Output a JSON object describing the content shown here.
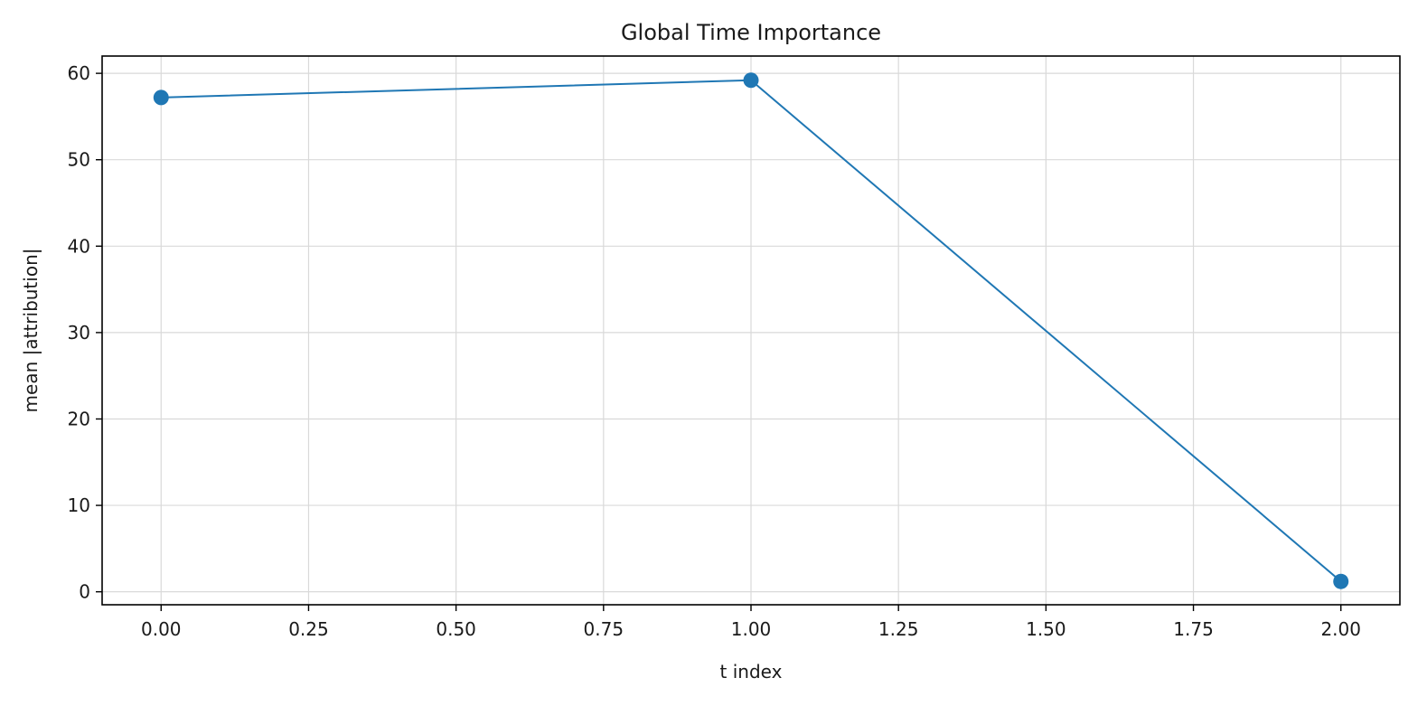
{
  "chart_data": {
    "type": "line",
    "title": "Global Time Importance",
    "xlabel": "t index",
    "ylabel": "mean |attribution|",
    "xlim": [
      -0.1,
      2.1
    ],
    "ylim": [
      -1.5,
      62
    ],
    "xticks": [
      0.0,
      0.25,
      0.5,
      0.75,
      1.0,
      1.25,
      1.5,
      1.75,
      2.0
    ],
    "xtick_labels": [
      "0.00",
      "0.25",
      "0.50",
      "0.75",
      "1.00",
      "1.25",
      "1.50",
      "1.75",
      "2.00"
    ],
    "yticks": [
      0,
      10,
      20,
      30,
      40,
      50,
      60
    ],
    "ytick_labels": [
      "0",
      "10",
      "20",
      "30",
      "40",
      "50",
      "60"
    ],
    "grid": true,
    "series": [
      {
        "x": [
          0,
          1,
          2
        ],
        "y": [
          57.2,
          59.2,
          1.2
        ],
        "marker": "circle"
      }
    ],
    "colors": {
      "line": "#1f77b4",
      "grid": "#d9d9d9",
      "axis": "#000000"
    }
  }
}
